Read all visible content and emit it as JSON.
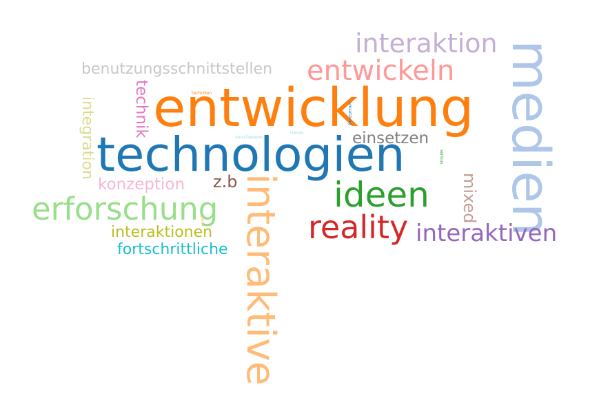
{
  "words": [
    {
      "key": "entwicklung",
      "text": "entwicklung",
      "color": "#ff7f0e"
    },
    {
      "key": "technologien",
      "text": "technologien",
      "color": "#1f77b4"
    },
    {
      "key": "medien",
      "text": "medien",
      "color": "#aec7e8"
    },
    {
      "key": "interaktive",
      "text": "interaktive",
      "color": "#ffbb78"
    },
    {
      "key": "erforschung",
      "text": "erforschung",
      "color": "#98df8a"
    },
    {
      "key": "ideen",
      "text": "ideen",
      "color": "#2ca02c"
    },
    {
      "key": "reality",
      "text": "reality",
      "color": "#d62728"
    },
    {
      "key": "interaktiven",
      "text": "interaktiven",
      "color": "#9467bd"
    },
    {
      "key": "interaktion",
      "text": "interaktion",
      "color": "#c5b0d5"
    },
    {
      "key": "entwickeln",
      "text": "entwickeln",
      "color": "#ff9896"
    },
    {
      "key": "benutzungsschnittstellen",
      "text": "benutzungsschnittstellen",
      "color": "#c7c7c7"
    },
    {
      "key": "technik",
      "text": "technik",
      "color": "#e377c2"
    },
    {
      "key": "integration",
      "text": "integration",
      "color": "#dbdb8d"
    },
    {
      "key": "einsetzen",
      "text": "einsetzen",
      "color": "#7f7f7f"
    },
    {
      "key": "konzeption",
      "text": "konzeption",
      "color": "#f7b6d2"
    },
    {
      "key": "z_b",
      "text": "z.b",
      "color": "#8c564b"
    },
    {
      "key": "mixed",
      "text": "mixed",
      "color": "#c49c94"
    },
    {
      "key": "interaktionen",
      "text": "interaktionen",
      "color": "#bcbd22"
    },
    {
      "key": "fortschrittliche",
      "text": "fortschrittliche",
      "color": "#17becf"
    },
    {
      "key": "techniken",
      "text": "techniken",
      "color": "#ff7f0e"
    },
    {
      "key": "verschiedene",
      "text": "verschiedene",
      "color": "#9edae5"
    },
    {
      "key": "trends",
      "text": "trends",
      "color": "#9edae5"
    },
    {
      "key": "umsetzung",
      "text": "umsetzung",
      "color": "#1f77b4"
    },
    {
      "key": "serious",
      "text": "serious",
      "color": "#2ca02c"
    },
    {
      "key": "game",
      "text": "game",
      "color": "#ffbb78"
    }
  ]
}
